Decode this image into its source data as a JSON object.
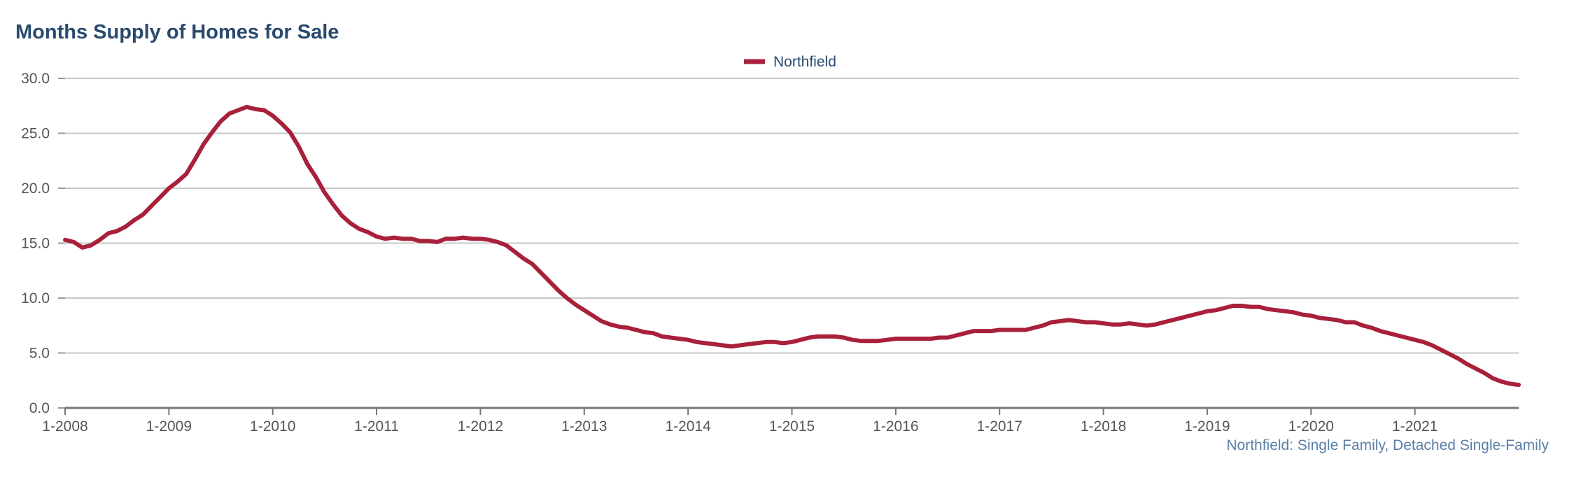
{
  "chart_data": {
    "type": "line",
    "title": "Months Supply of Homes for Sale",
    "footnote": "Northfield: Single Family, Detached Single-Family",
    "ylim": [
      0,
      30
    ],
    "yticks": [
      "0.0",
      "5.0",
      "10.0",
      "15.0",
      "20.0",
      "25.0",
      "30.0"
    ],
    "xticks": [
      "1-2008",
      "1-2009",
      "1-2010",
      "1-2011",
      "1-2012",
      "1-2013",
      "1-2014",
      "1-2015",
      "1-2016",
      "1-2017",
      "1-2018",
      "1-2019",
      "1-2020",
      "1-2021"
    ],
    "x_start": "1-2008",
    "x_end": "12-2021",
    "grid": true,
    "legend_position": "top-center",
    "series": [
      {
        "name": "Northfield",
        "color": "#a8203a",
        "values": [
          15.3,
          15.1,
          14.6,
          14.8,
          15.3,
          15.9,
          16.1,
          16.5,
          17.1,
          17.6,
          18.4,
          19.2,
          20.0,
          20.6,
          21.3,
          22.6,
          24.0,
          25.1,
          26.1,
          26.8,
          27.1,
          27.4,
          27.2,
          27.1,
          26.6,
          25.9,
          25.1,
          23.8,
          22.2,
          21.0,
          19.6,
          18.5,
          17.5,
          16.8,
          16.3,
          16.0,
          15.6,
          15.4,
          15.5,
          15.4,
          15.4,
          15.2,
          15.2,
          15.1,
          15.4,
          15.4,
          15.5,
          15.4,
          15.4,
          15.3,
          15.1,
          14.8,
          14.2,
          13.6,
          13.1,
          12.3,
          11.5,
          10.7,
          10.0,
          9.4,
          8.9,
          8.4,
          7.9,
          7.6,
          7.4,
          7.3,
          7.1,
          6.9,
          6.8,
          6.5,
          6.4,
          6.3,
          6.2,
          6.0,
          5.9,
          5.8,
          5.7,
          5.6,
          5.7,
          5.8,
          5.9,
          6.0,
          6.0,
          5.9,
          6.0,
          6.2,
          6.4,
          6.5,
          6.5,
          6.5,
          6.4,
          6.2,
          6.1,
          6.1,
          6.1,
          6.2,
          6.3,
          6.3,
          6.3,
          6.3,
          6.3,
          6.4,
          6.4,
          6.6,
          6.8,
          7.0,
          7.0,
          7.0,
          7.1,
          7.1,
          7.1,
          7.1,
          7.3,
          7.5,
          7.8,
          7.9,
          8.0,
          7.9,
          7.8,
          7.8,
          7.7,
          7.6,
          7.6,
          7.7,
          7.6,
          7.5,
          7.6,
          7.8,
          8.0,
          8.2,
          8.4,
          8.6,
          8.8,
          8.9,
          9.1,
          9.3,
          9.3,
          9.2,
          9.2,
          9.0,
          8.9,
          8.8,
          8.7,
          8.5,
          8.4,
          8.2,
          8.1,
          8.0,
          7.8,
          7.8,
          7.5,
          7.3,
          7.0,
          6.8,
          6.6,
          6.4,
          6.2,
          6.0,
          5.7,
          5.3,
          4.9,
          4.5,
          4.0,
          3.6,
          3.2,
          2.7,
          2.4,
          2.2,
          2.1
        ]
      }
    ]
  }
}
